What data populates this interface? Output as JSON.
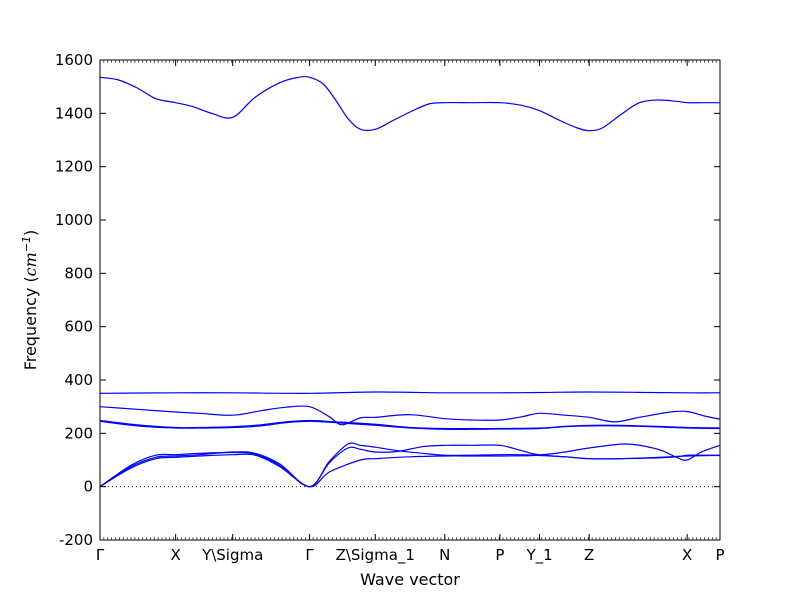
{
  "chart_data": {
    "type": "line",
    "xlabel": "Wave vector",
    "ylabel": "Frequency (cm^-1)",
    "ylabel_parts": {
      "prefix": "Frequency (",
      "base": "cm",
      "sup": "−1",
      "suffix": ")"
    },
    "xlim": [
      0,
      1
    ],
    "ylim": [
      -200,
      1600
    ],
    "y_ticks": [
      -200,
      0,
      200,
      400,
      600,
      800,
      1000,
      1200,
      1400,
      1600
    ],
    "x_ticks": [
      {
        "label": "Γ",
        "value": 0.0
      },
      {
        "label": "X",
        "value": 0.122
      },
      {
        "label": "Y\\Sigma",
        "value": 0.214
      },
      {
        "label": "Γ",
        "value": 0.338
      },
      {
        "label": "Z\\Sigma_1",
        "value": 0.444
      },
      {
        "label": "N",
        "value": 0.556
      },
      {
        "label": "P",
        "value": 0.645
      },
      {
        "label": "Y_1",
        "value": 0.709
      },
      {
        "label": "Z",
        "value": 0.789
      },
      {
        "label": "X",
        "value": 0.947
      },
      {
        "label": "P",
        "value": 1.0
      }
    ],
    "reference_line": {
      "y": 0,
      "style": "dotted"
    },
    "line_color": "#0000ff",
    "series": [
      {
        "x": [
          0,
          0.05,
          0.09,
          0.122,
          0.16,
          0.214,
          0.25,
          0.29,
          0.338,
          0.37,
          0.42,
          0.444,
          0.5,
          0.556,
          0.6,
          0.645,
          0.69,
          0.709,
          0.75,
          0.789,
          0.84,
          0.9,
          0.947,
          1.0
        ],
        "y": [
          0,
          70,
          105,
          110,
          115,
          120,
          118,
          75,
          0,
          55,
          100,
          105,
          112,
          115,
          115,
          115,
          116,
          117,
          112,
          105,
          105,
          110,
          115,
          117
        ]
      },
      {
        "x": [
          0,
          0.05,
          0.09,
          0.122,
          0.16,
          0.214,
          0.25,
          0.29,
          0.338,
          0.37,
          0.4,
          0.42,
          0.444,
          0.48,
          0.52,
          0.556,
          0.6,
          0.645,
          0.68,
          0.709,
          0.75,
          0.789,
          0.84,
          0.9,
          0.93,
          0.947,
          0.97,
          1.0
        ],
        "y": [
          0,
          75,
          110,
          115,
          120,
          130,
          125,
          85,
          0,
          95,
          160,
          155,
          148,
          135,
          125,
          118,
          118,
          120,
          120,
          118,
          112,
          105,
          105,
          108,
          112,
          118,
          118,
          118
        ]
      },
      {
        "x": [
          0,
          0.05,
          0.09,
          0.122,
          0.16,
          0.214,
          0.25,
          0.29,
          0.338,
          0.37,
          0.4,
          0.42,
          0.444,
          0.48,
          0.52,
          0.556,
          0.6,
          0.645,
          0.68,
          0.709,
          0.75,
          0.789,
          0.85,
          0.9,
          0.93,
          0.947,
          0.97,
          1.0
        ],
        "y": [
          0,
          80,
          118,
          120,
          125,
          128,
          122,
          80,
          0,
          90,
          145,
          140,
          130,
          132,
          150,
          155,
          155,
          155,
          135,
          120,
          130,
          145,
          160,
          140,
          110,
          100,
          130,
          155
        ]
      },
      {
        "x": [
          0,
          0.06,
          0.122,
          0.16,
          0.214,
          0.26,
          0.3,
          0.338,
          0.38,
          0.444,
          0.5,
          0.556,
          0.6,
          0.645,
          0.709,
          0.75,
          0.789,
          0.84,
          0.9,
          0.947,
          1.0
        ],
        "y": [
          245,
          228,
          220,
          220,
          222,
          228,
          240,
          245,
          240,
          230,
          220,
          215,
          215,
          216,
          218,
          225,
          228,
          228,
          224,
          220,
          218
        ]
      },
      {
        "x": [
          0,
          0.06,
          0.122,
          0.16,
          0.214,
          0.26,
          0.3,
          0.338,
          0.38,
          0.444,
          0.5,
          0.556,
          0.6,
          0.645,
          0.709,
          0.75,
          0.789,
          0.84,
          0.9,
          0.947,
          1.0
        ],
        "y": [
          248,
          232,
          222,
          222,
          225,
          232,
          243,
          248,
          243,
          234,
          222,
          218,
          218,
          218,
          220,
          226,
          230,
          230,
          226,
          222,
          220
        ]
      },
      {
        "x": [
          0,
          0.06,
          0.122,
          0.16,
          0.214,
          0.26,
          0.3,
          0.338,
          0.37,
          0.39,
          0.42,
          0.444,
          0.5,
          0.556,
          0.6,
          0.645,
          0.68,
          0.709,
          0.75,
          0.789,
          0.83,
          0.87,
          0.92,
          0.947,
          0.975,
          1.0
        ],
        "y": [
          300,
          290,
          280,
          275,
          268,
          285,
          298,
          300,
          262,
          232,
          258,
          260,
          270,
          255,
          250,
          250,
          262,
          275,
          268,
          260,
          243,
          260,
          280,
          282,
          265,
          253
        ]
      },
      {
        "x": [
          0,
          0.122,
          0.214,
          0.338,
          0.444,
          0.556,
          0.645,
          0.709,
          0.789,
          0.947,
          1.0
        ],
        "y": [
          350,
          352,
          352,
          350,
          355,
          352,
          352,
          353,
          355,
          352,
          352
        ]
      },
      {
        "x": [
          0,
          0.03,
          0.06,
          0.09,
          0.122,
          0.15,
          0.18,
          0.214,
          0.25,
          0.29,
          0.32,
          0.338,
          0.36,
          0.38,
          0.4,
          0.42,
          0.444,
          0.47,
          0.5,
          0.53,
          0.556,
          0.6,
          0.645,
          0.68,
          0.709,
          0.74,
          0.77,
          0.789,
          0.81,
          0.84,
          0.87,
          0.9,
          0.93,
          0.947,
          0.97,
          1.0
        ],
        "y": [
          1535,
          1525,
          1495,
          1455,
          1440,
          1425,
          1400,
          1385,
          1460,
          1515,
          1535,
          1535,
          1510,
          1450,
          1380,
          1340,
          1340,
          1370,
          1405,
          1435,
          1440,
          1440,
          1440,
          1430,
          1410,
          1375,
          1345,
          1335,
          1345,
          1395,
          1440,
          1450,
          1445,
          1440,
          1440,
          1440
        ]
      }
    ]
  }
}
